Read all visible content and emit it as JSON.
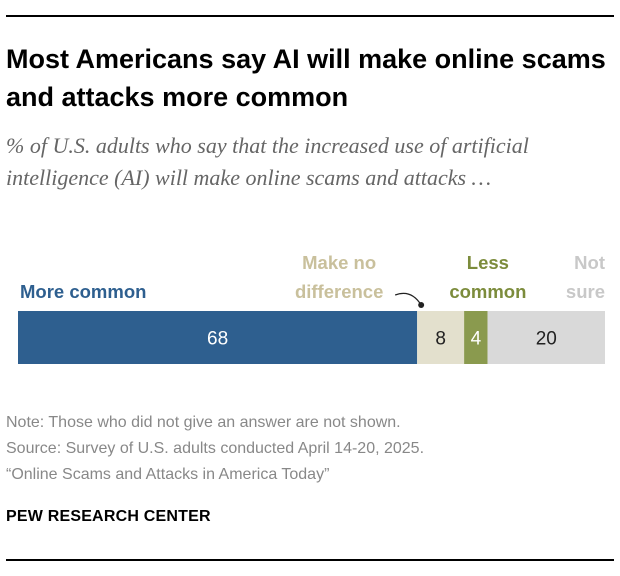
{
  "title": "Most Americans say AI will make online scams and attacks more common",
  "subtitle": "% of U.S. adults who say that the increased use of artificial intelligence (AI) will make online scams and attacks …",
  "chart_data": {
    "type": "bar",
    "orientation": "horizontal",
    "stacked": true,
    "categories": [
      "More common",
      "Make no difference",
      "Less common",
      "Not sure"
    ],
    "values": [
      68,
      8,
      4,
      20
    ],
    "colors": [
      "#2e5f8f",
      "#e3e0cd",
      "#8a9a4e",
      "#d9d9d9"
    ],
    "label_colors": [
      "#2e5f8f",
      "#c9c09c",
      "#7c8c3c",
      "#c8c8c8"
    ],
    "value_label_colors": [
      "#ffffff",
      "#222222",
      "#ffffff",
      "#222222"
    ],
    "xlim": [
      0,
      100
    ],
    "grid": false,
    "legend": "labels above bar segments"
  },
  "notes": [
    "Note: Those who did not give an answer are not shown.",
    "Source: Survey of U.S. adults conducted April 14-20, 2025.",
    "“Online Scams and Attacks in America Today”"
  ],
  "brand": "PEW RESEARCH CENTER"
}
